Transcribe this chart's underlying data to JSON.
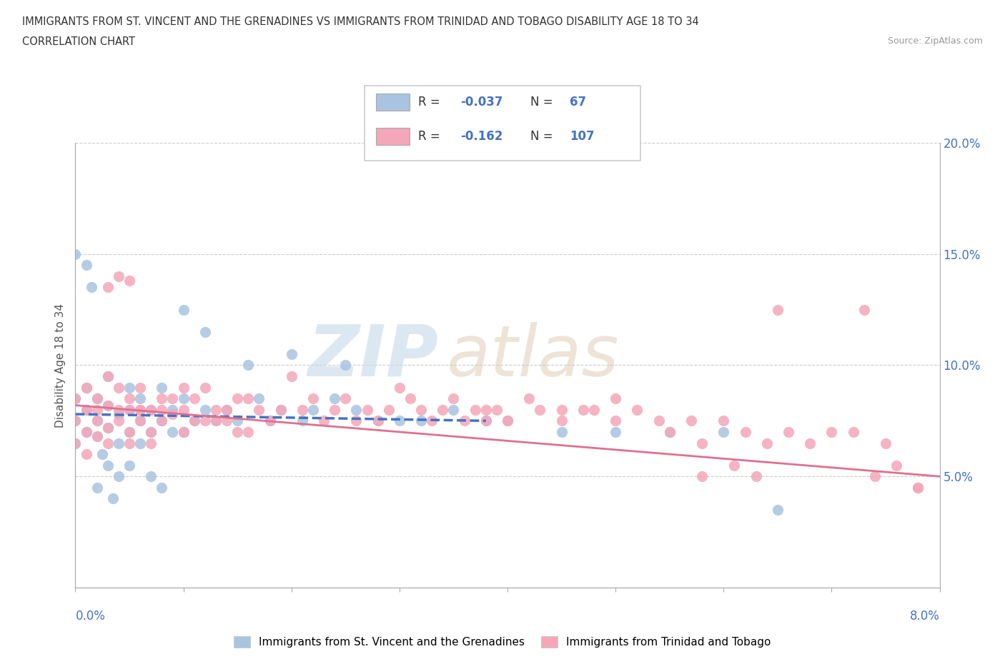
{
  "title_line1": "IMMIGRANTS FROM ST. VINCENT AND THE GRENADINES VS IMMIGRANTS FROM TRINIDAD AND TOBAGO DISABILITY AGE 18 TO 34",
  "title_line2": "CORRELATION CHART",
  "source": "Source: ZipAtlas.com",
  "ylabel": "Disability Age 18 to 34",
  "xlim": [
    0.0,
    8.0
  ],
  "ylim": [
    0.0,
    20.0
  ],
  "ytick_labels_right": [
    "5.0%",
    "10.0%",
    "15.0%",
    "20.0%"
  ],
  "ytick_vals_right": [
    5.0,
    10.0,
    15.0,
    20.0
  ],
  "color_blue": "#a8c4e0",
  "color_pink": "#f4a7b9",
  "color_blue_line": "#4472c4",
  "color_pink_line": "#e07090",
  "R1": -0.037,
  "N1": 67,
  "R2": -0.162,
  "N2": 107,
  "watermark": "ZIPatlas",
  "series1_label": "Immigrants from St. Vincent and the Grenadines",
  "series2_label": "Immigrants from Trinidad and Tobago",
  "scatter1_x": [
    0.0,
    0.0,
    0.0,
    0.1,
    0.1,
    0.1,
    0.2,
    0.2,
    0.2,
    0.3,
    0.3,
    0.3,
    0.4,
    0.4,
    0.5,
    0.5,
    0.5,
    0.6,
    0.6,
    0.7,
    0.7,
    0.8,
    0.8,
    0.9,
    0.9,
    1.0,
    1.0,
    1.1,
    1.2,
    1.3,
    1.4,
    1.5,
    1.6,
    1.7,
    1.8,
    1.9,
    2.0,
    2.1,
    2.2,
    2.4,
    2.5,
    2.6,
    2.8,
    3.0,
    3.2,
    3.5,
    3.8,
    4.0,
    4.5,
    5.0,
    5.5,
    6.0,
    6.5,
    0.0,
    0.1,
    0.15,
    0.2,
    0.25,
    0.3,
    0.35,
    0.4,
    0.5,
    0.6,
    0.7,
    0.8,
    1.0,
    1.2
  ],
  "scatter1_y": [
    7.5,
    8.5,
    6.5,
    9.0,
    7.0,
    8.0,
    8.5,
    7.5,
    6.8,
    7.2,
    8.2,
    9.5,
    7.8,
    6.5,
    8.0,
    7.0,
    9.0,
    7.5,
    8.5,
    7.0,
    8.0,
    7.5,
    9.0,
    8.0,
    7.0,
    8.5,
    7.0,
    7.5,
    8.0,
    7.5,
    8.0,
    7.5,
    10.0,
    8.5,
    7.5,
    8.0,
    10.5,
    7.5,
    8.0,
    8.5,
    10.0,
    8.0,
    7.5,
    7.5,
    7.5,
    8.0,
    7.5,
    7.5,
    7.0,
    7.0,
    7.0,
    7.0,
    3.5,
    15.0,
    14.5,
    13.5,
    4.5,
    6.0,
    5.5,
    4.0,
    5.0,
    5.5,
    6.5,
    5.0,
    4.5,
    12.5,
    11.5
  ],
  "scatter2_x": [
    0.0,
    0.0,
    0.0,
    0.1,
    0.1,
    0.1,
    0.1,
    0.2,
    0.2,
    0.2,
    0.3,
    0.3,
    0.3,
    0.3,
    0.4,
    0.4,
    0.4,
    0.5,
    0.5,
    0.5,
    0.6,
    0.6,
    0.6,
    0.7,
    0.7,
    0.7,
    0.8,
    0.8,
    0.9,
    0.9,
    1.0,
    1.0,
    1.0,
    1.1,
    1.1,
    1.2,
    1.2,
    1.3,
    1.3,
    1.4,
    1.4,
    1.5,
    1.5,
    1.6,
    1.6,
    1.7,
    1.8,
    1.9,
    2.0,
    2.1,
    2.2,
    2.3,
    2.4,
    2.5,
    2.6,
    2.7,
    2.8,
    2.9,
    3.0,
    3.1,
    3.2,
    3.3,
    3.4,
    3.5,
    3.6,
    3.7,
    3.8,
    3.9,
    4.0,
    4.2,
    4.3,
    4.5,
    4.7,
    4.8,
    5.0,
    5.2,
    5.4,
    5.5,
    5.7,
    5.8,
    6.0,
    6.2,
    6.4,
    6.6,
    6.8,
    7.0,
    7.2,
    7.5,
    7.8,
    0.3,
    0.4,
    0.5,
    3.8,
    5.0,
    4.5,
    6.5,
    7.3,
    0.5,
    5.8,
    6.1,
    6.3,
    7.4,
    7.6,
    7.8,
    0.2,
    0.6,
    0.8
  ],
  "scatter2_y": [
    7.5,
    8.5,
    6.5,
    9.0,
    7.0,
    8.0,
    6.0,
    8.5,
    7.5,
    6.8,
    9.5,
    7.2,
    8.2,
    6.5,
    8.0,
    7.5,
    9.0,
    7.0,
    8.5,
    6.5,
    8.0,
    7.5,
    9.0,
    7.0,
    8.0,
    6.5,
    8.5,
    7.5,
    7.8,
    8.5,
    8.0,
    7.0,
    9.0,
    7.5,
    8.5,
    7.5,
    9.0,
    8.0,
    7.5,
    8.0,
    7.5,
    8.5,
    7.0,
    8.5,
    7.0,
    8.0,
    7.5,
    8.0,
    9.5,
    8.0,
    8.5,
    7.5,
    8.0,
    8.5,
    7.5,
    8.0,
    7.5,
    8.0,
    9.0,
    8.5,
    8.0,
    7.5,
    8.0,
    8.5,
    7.5,
    8.0,
    7.5,
    8.0,
    7.5,
    8.5,
    8.0,
    7.5,
    8.0,
    8.0,
    7.5,
    8.0,
    7.5,
    7.0,
    7.5,
    6.5,
    7.5,
    7.0,
    6.5,
    7.0,
    6.5,
    7.0,
    7.0,
    6.5,
    4.5,
    13.5,
    14.0,
    13.8,
    8.0,
    8.5,
    8.0,
    12.5,
    12.5,
    8.0,
    5.0,
    5.5,
    5.0,
    5.0,
    5.5,
    4.5,
    8.0,
    8.0,
    8.0
  ],
  "trend1_x": [
    0.0,
    3.8
  ],
  "trend1_y": [
    7.8,
    7.5
  ],
  "trend2_x": [
    0.0,
    8.0
  ],
  "trend2_y": [
    8.2,
    5.0
  ]
}
